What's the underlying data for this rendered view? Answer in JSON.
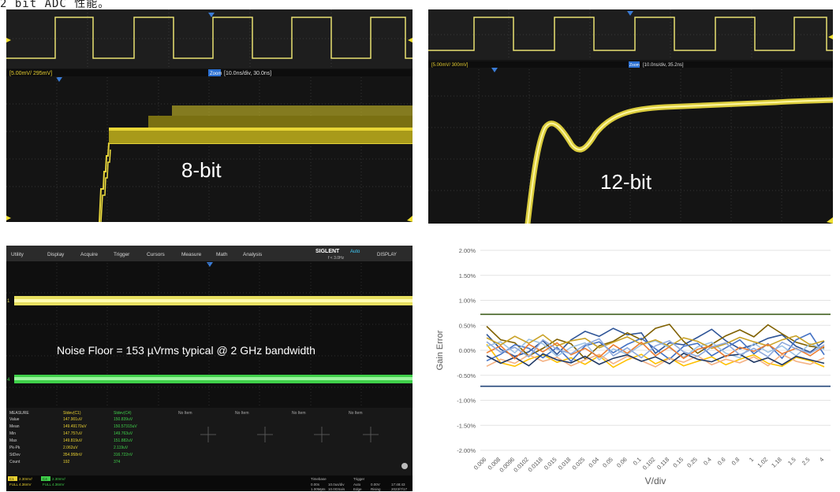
{
  "caption": "2 bit ADC 性能。",
  "panel_8bit": {
    "label": "8-bit",
    "scale": "[5.00mV/ 295mV]",
    "timebase_tag": "Zoom",
    "timebase": "[10.0ns/div, 30.0ns]"
  },
  "panel_12bit": {
    "label": "12-bit",
    "scale": "[5.00mV/ 300mV]",
    "timebase_tag": "Zoom",
    "timebase": "[10.0ns/div, 35.2ns]"
  },
  "panel_noise": {
    "toolbar": [
      "Utility",
      "Display",
      "Acquire",
      "Trigger",
      "Cursors",
      "Measure",
      "Math",
      "Analysis"
    ],
    "brand": "SIGLENT",
    "run_state": "Auto",
    "freq": "f < 3.0Hz",
    "display_btn": "DISPLAY",
    "annotation": "Noise Floor = 153 µVrms typical @ 2 GHz bandwidth",
    "measure_header": [
      "MEASURE",
      "Stdev(C1)",
      "Stdev(C4)",
      "No Item",
      "No Item",
      "No Item",
      "No Item"
    ],
    "measure_rows": [
      [
        "Value",
        "147.901uV",
        "150.839uV"
      ],
      [
        "Mean",
        "149.49170uV",
        "150.57315uV"
      ],
      [
        "Min",
        "147.757uV",
        "149.763uV"
      ],
      [
        "Max",
        "149.819uV",
        "151.882uV"
      ],
      [
        "Pk-Pk",
        "2.062uV",
        "2.119uV"
      ],
      [
        "StDev",
        "354.958nV",
        "316.722nV"
      ],
      [
        "Count",
        "192",
        "374"
      ]
    ],
    "ch1": {
      "tag": "C1",
      "v": "2.30mV/",
      "off": "0.00V",
      "mode": "FULL",
      "res": "4.36mV"
    },
    "ch4": {
      "tag": "C4",
      "v": "2.30mV/",
      "off": "0.00V",
      "mode": "FULL",
      "res": "4.36mV"
    },
    "timebase_box": [
      "Timebase",
      "0.00s",
      "10.0us/div",
      "1.00Mpts",
      "10.0GSa/s"
    ],
    "trigger_box": [
      "Trigger",
      "Auto",
      "Edge",
      "0.00V",
      "Rising"
    ],
    "clock": [
      "17:48:43",
      "2023/7/17"
    ]
  },
  "gain_chart": {
    "colors": {
      "pos_limit": "#3f5f1e",
      "neg_limit": "#24477a"
    }
  },
  "chart_data": {
    "type": "line",
    "title": "",
    "xlabel": "V/div",
    "ylabel": "Gain Error",
    "ylim": [
      -0.02,
      0.02
    ],
    "y_ticks": [
      "2.00%",
      "1.50%",
      "1.00%",
      "0.50%",
      "0.00%",
      "-0.50%",
      "-1.00%",
      "-1.50%",
      "-2.00%"
    ],
    "categories": [
      "0.006",
      "0.008",
      "0.0096",
      "0.0102",
      "0.0118",
      "0.015",
      "0.018",
      "0.025",
      "0.04",
      "0.05",
      "0.06",
      "0.1",
      "0.102",
      "0.118",
      "0.15",
      "0.25",
      "0.4",
      "0.6",
      "0.8",
      "1",
      "1.02",
      "1.18",
      "1.5",
      "2.5",
      "4"
    ],
    "limits": {
      "upper": 0.0072,
      "lower": -0.0072
    },
    "series": [
      {
        "color": "#2f5597",
        "values": [
          0.0032,
          0.0002,
          -0.0012,
          -0.0003,
          0.0019,
          -0.0008,
          0.0021,
          0.0038,
          0.0028,
          0.0044,
          0.0031,
          0.0035,
          -0.0006,
          0.0015,
          0.0011,
          0.0026,
          0.0042,
          0.0019,
          0.0003,
          0.0011,
          0.0024,
          0.0031,
          0.0008,
          -0.0004,
          0.0018
        ]
      },
      {
        "color": "#7f6000",
        "values": [
          0.0048,
          0.0021,
          0.0015,
          -0.0011,
          0.0004,
          0.0022,
          0.0013,
          -0.0017,
          0.0009,
          0.0018,
          0.0035,
          0.0021,
          0.0044,
          0.0052,
          0.0018,
          -0.0006,
          0.0012,
          0.0029,
          0.0041,
          0.0027,
          0.0051,
          0.0033,
          0.0016,
          0.0008,
          0.0005
        ]
      },
      {
        "color": "#ffc000",
        "values": [
          0.0012,
          -0.0025,
          -0.0032,
          -0.0018,
          -0.0009,
          -0.0024,
          -0.0015,
          -0.0028,
          -0.0011,
          -0.0034,
          -0.0019,
          -0.0008,
          -0.0027,
          -0.0015,
          -0.0031,
          -0.0022,
          -0.0013,
          -0.0029,
          -0.0018,
          -0.0009,
          -0.0026,
          -0.0032,
          -0.0014,
          -0.0021,
          -0.0033
        ]
      },
      {
        "color": "#4472c4",
        "values": [
          -0.0021,
          -0.0008,
          0.0011,
          0.0004,
          -0.0015,
          0.0006,
          -0.0022,
          0.0009,
          0.0017,
          -0.0005,
          0.0012,
          0.0024,
          0.0003,
          -0.0018,
          0.0008,
          0.0014,
          -0.0011,
          0.0005,
          0.0021,
          -0.0007,
          0.0013,
          -0.0016,
          0.0021,
          0.0034,
          -0.0009
        ]
      },
      {
        "color": "#9dc3e6",
        "values": [
          0.0008,
          0.0017,
          -0.0005,
          0.0022,
          0.0013,
          -0.0012,
          0.0006,
          0.0015,
          -0.0019,
          0.0003,
          -0.0008,
          0.0011,
          0.0019,
          0.0005,
          -0.0014,
          0.0007,
          0.0016,
          -0.0006,
          -0.0015,
          0.0014,
          -0.0004,
          0.0009,
          -0.0011,
          0.0013,
          0.0002
        ]
      },
      {
        "color": "#f4b183",
        "values": [
          -0.0032,
          -0.0018,
          -0.0026,
          -0.0009,
          -0.0022,
          -0.0014,
          -0.0031,
          -0.0019,
          -0.0008,
          -0.0027,
          -0.0012,
          -0.0021,
          -0.0033,
          -0.0016,
          -0.0024,
          -0.0011,
          -0.0029,
          -0.0018,
          -0.0025,
          -0.0013,
          -0.0031,
          -0.0008,
          -0.0022,
          -0.0028,
          -0.0015
        ]
      },
      {
        "color": "#c9a227",
        "values": [
          0.0025,
          0.0011,
          0.0028,
          0.0014,
          0.0031,
          0.0009,
          0.0019,
          0.0024,
          0.0005,
          0.0016,
          0.0027,
          0.0012,
          0.0021,
          0.0008,
          0.0025,
          0.0018,
          0.0004,
          0.0013,
          0.0026,
          0.0017,
          0.0009,
          0.0021,
          0.0029,
          0.0011,
          0.0019
        ]
      },
      {
        "color": "#1f3864",
        "values": [
          -0.0011,
          -0.0026,
          -0.0014,
          -0.0031,
          -0.0007,
          -0.0019,
          -0.0025,
          -0.0012,
          -0.0028,
          -0.0016,
          -0.0009,
          -0.0022,
          -0.0013,
          -0.0027,
          -0.0006,
          -0.0018,
          -0.0023,
          -0.0011,
          -0.0008,
          -0.0024,
          -0.0015,
          -0.0029,
          -0.0012,
          -0.0019,
          -0.0026
        ]
      },
      {
        "color": "#ed7d31",
        "values": [
          -0.0005,
          0.0009,
          -0.0017,
          0.0012,
          -0.0003,
          0.0015,
          -0.0009,
          0.0004,
          -0.0014,
          0.0011,
          -0.0006,
          0.0016,
          -0.0011,
          0.0007,
          -0.0016,
          0.0002,
          0.0009,
          -0.0013,
          0.0006,
          -0.0002,
          0.0012,
          -0.0007,
          0.0004,
          -0.0011,
          0.0008
        ]
      },
      {
        "color": "#8faadc",
        "values": [
          0.0017,
          -0.0004,
          0.0006,
          -0.0013,
          0.0021,
          0.0002,
          -0.0007,
          0.0011,
          0.0023,
          -0.0011,
          0.0005,
          -0.0015,
          0.0009,
          0.0019,
          -0.0003,
          -0.0012,
          0.0007,
          0.0015,
          -0.0009,
          0.0004,
          -0.0013,
          0.0016,
          0.0003,
          -0.0006,
          0.0011
        ]
      }
    ]
  }
}
